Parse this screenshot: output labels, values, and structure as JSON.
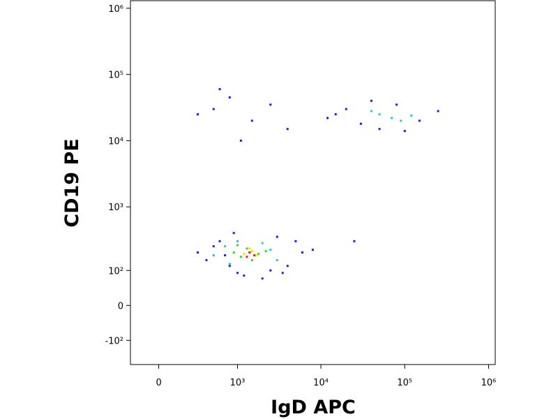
{
  "chart_data": {
    "type": "scatter",
    "x_label": "IgD APC",
    "y_label": "CD19 PE",
    "xscale": "biexponential",
    "yscale": "biexponential",
    "xlim": [
      -200,
      1200000
    ],
    "ylim": [
      -250,
      1300000
    ],
    "xticks": [
      0,
      {
        "value": 1000,
        "label": "10³"
      },
      {
        "value": 10000,
        "label": "10⁴"
      },
      {
        "value": 100000,
        "label": "10⁵"
      },
      {
        "value": 1000000,
        "label": "10⁶"
      }
    ],
    "yticks": [
      {
        "value": -100,
        "label": "-10²"
      },
      0,
      {
        "value": 100,
        "label": "10²"
      },
      {
        "value": 1000,
        "label": "10³"
      },
      {
        "value": 10000,
        "label": "10⁴"
      },
      {
        "value": 100000,
        "label": "10⁵"
      },
      {
        "value": 1000000,
        "label": "10⁶"
      }
    ],
    "series": [
      {
        "color": "#1a1aff",
        "x": [
          400,
          600,
          800,
          1000,
          2500,
          4000,
          6000,
          300,
          500,
          700,
          3000,
          5000,
          8000,
          900,
          1200,
          2000,
          3500,
          20000,
          30000,
          50000,
          80000,
          150000,
          250000,
          40000,
          100000,
          15000,
          300,
          500,
          800,
          1500,
          2500,
          4000,
          12000,
          25000,
          600,
          1100
        ],
        "values": [
          150,
          300,
          120,
          90,
          100,
          120,
          200,
          200,
          250,
          180,
          350,
          300,
          220,
          400,
          80,
          70,
          90,
          30000,
          18000,
          15000,
          35000,
          20000,
          28000,
          40000,
          14000,
          25000,
          25000,
          30000,
          45000,
          20000,
          35000,
          15000,
          22000,
          300,
          60000,
          10000
        ]
      },
      {
        "color": "#22c8e0",
        "x": [
          500,
          700,
          2000,
          3000,
          800,
          50000,
          70000,
          40000,
          120000,
          90000,
          1000,
          2500
        ],
        "values": [
          180,
          250,
          280,
          150,
          130,
          25000,
          22000,
          28000,
          24000,
          20000,
          300,
          220
        ]
      },
      {
        "color": "#3cd43c",
        "x": [
          900,
          1100,
          1300,
          1800,
          2200,
          1500,
          1000
        ],
        "values": [
          200,
          170,
          230,
          190,
          210,
          150,
          260
        ]
      },
      {
        "color": "#f0e020",
        "x": [
          1200,
          1500,
          1700,
          1400
        ],
        "values": [
          190,
          210,
          180,
          230
        ]
      },
      {
        "color": "#e02020",
        "x": [
          1400,
          1600,
          1300
        ],
        "values": [
          200,
          180,
          170
        ]
      }
    ]
  }
}
